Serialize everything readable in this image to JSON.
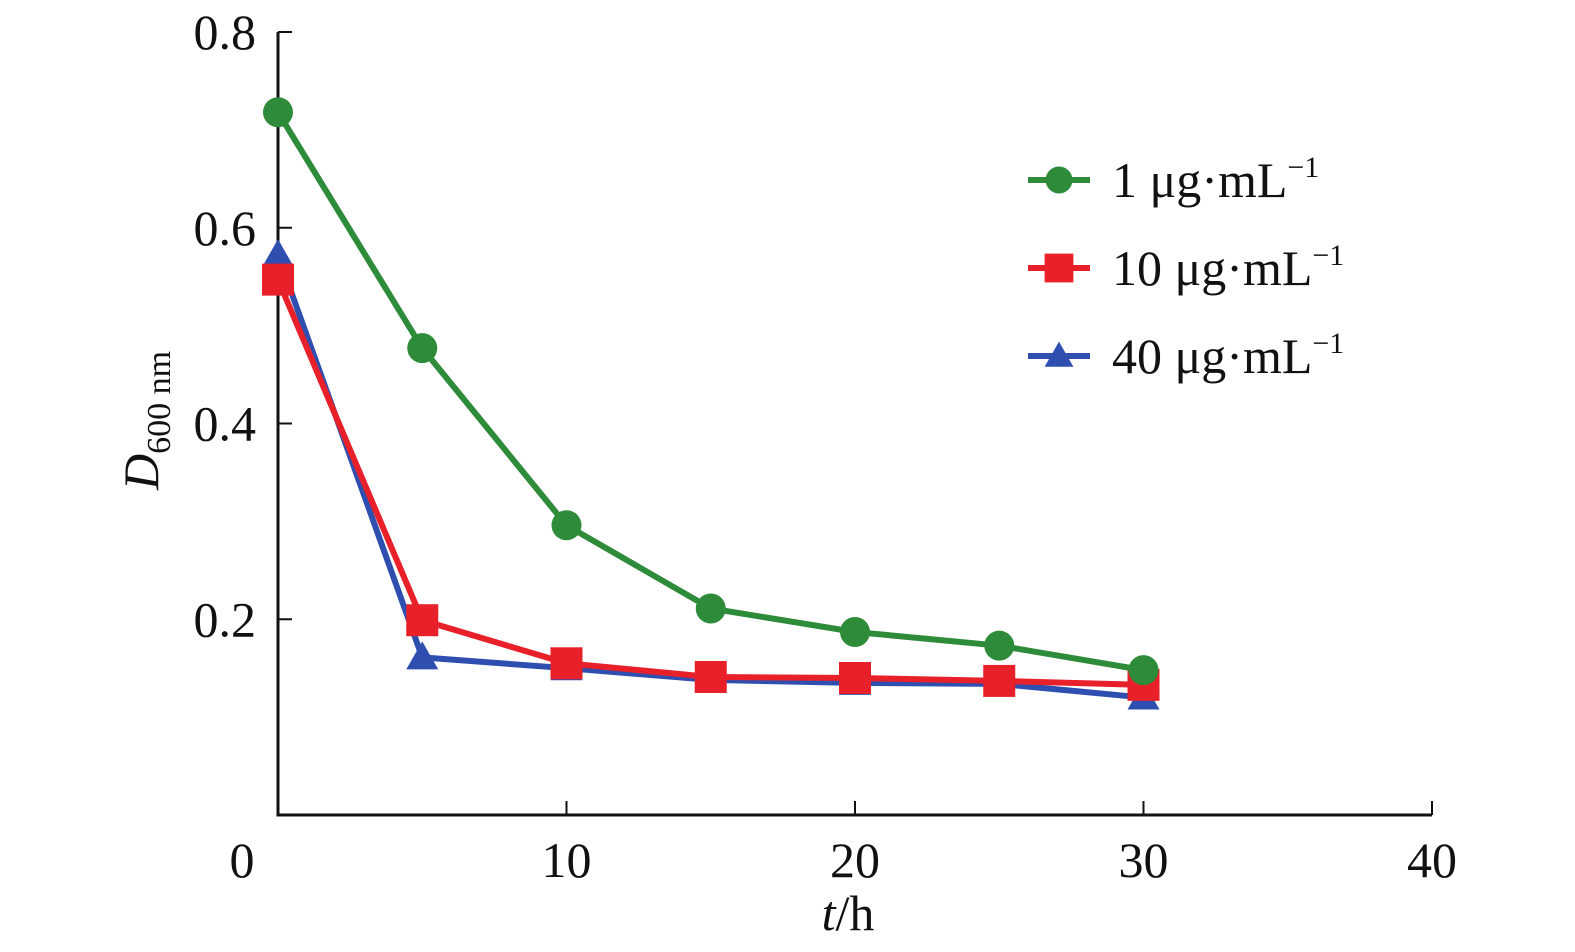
{
  "chart_data": {
    "type": "line",
    "title": "",
    "xlabel": "t/h",
    "xlabel_parts": {
      "var": "t",
      "unit": "/h"
    },
    "ylabel": "D600 nm",
    "ylabel_parts": {
      "var": "D",
      "sub": "600 nm"
    },
    "xlim": [
      0,
      40
    ],
    "ylim": [
      0,
      0.8
    ],
    "xticks": [
      0,
      10,
      20,
      30,
      40
    ],
    "xtick_labels": [
      "0",
      "10",
      "20",
      "30",
      "40"
    ],
    "yticks": [
      0.2,
      0.4,
      0.6,
      0.8
    ],
    "ytick_labels": [
      "0.2",
      "0.4",
      "0.6",
      "0.8"
    ],
    "grid": false,
    "legend_position": "top-right",
    "x": [
      0,
      5,
      10,
      15,
      20,
      25,
      30
    ],
    "series": [
      {
        "name": "1 μg·mL−1",
        "label_main": "1 μg·mL",
        "label_sup": "−1",
        "color": "#2e8b3a",
        "marker": "circle",
        "values": [
          0.718,
          0.477,
          0.296,
          0.211,
          0.187,
          0.173,
          0.148
        ]
      },
      {
        "name": "10 μg·mL−1",
        "label_main": "10 μg·mL",
        "label_sup": "−1",
        "color": "#e8202a",
        "marker": "square",
        "values": [
          0.547,
          0.199,
          0.155,
          0.141,
          0.14,
          0.137,
          0.133
        ]
      },
      {
        "name": "40 μg·mL−1",
        "label_main": "40 μg·mL",
        "label_sup": "−1",
        "color": "#2f4fb0",
        "marker": "triangle",
        "values": [
          0.572,
          0.161,
          0.15,
          0.138,
          0.135,
          0.134,
          0.12
        ]
      }
    ]
  }
}
